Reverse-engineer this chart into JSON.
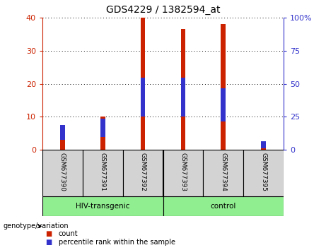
{
  "title": "GDS4229 / 1382594_at",
  "samples": [
    "GSM677390",
    "GSM677391",
    "GSM677392",
    "GSM677393",
    "GSM677394",
    "GSM677395"
  ],
  "count_values": [
    7.5,
    10,
    40,
    36.5,
    38,
    2.5
  ],
  "percentile_values": [
    10,
    12.5,
    28,
    28,
    24,
    4
  ],
  "left_ylim": [
    0,
    40
  ],
  "right_ylim": [
    0,
    100
  ],
  "left_yticks": [
    0,
    10,
    20,
    30,
    40
  ],
  "right_yticks": [
    0,
    25,
    50,
    75,
    100
  ],
  "left_ytick_labels": [
    "0",
    "10",
    "20",
    "30",
    "40"
  ],
  "right_ytick_labels": [
    "0",
    "25",
    "50",
    "75",
    "100%"
  ],
  "count_color": "#cc2200",
  "percentile_color": "#3333cc",
  "bar_width": 0.12,
  "percentile_bar_width": 0.08,
  "xlabel_area_color": "#d3d3d3",
  "group_label_area_color": "#90ee90",
  "left_axis_color": "#cc2200",
  "right_axis_color": "#3333cc",
  "legend_items": [
    "count",
    "percentile rank within the sample"
  ],
  "genotype_label": "genotype/variation",
  "hiv_label": "HIV-transgenic",
  "control_label": "control",
  "group_divider": 3
}
